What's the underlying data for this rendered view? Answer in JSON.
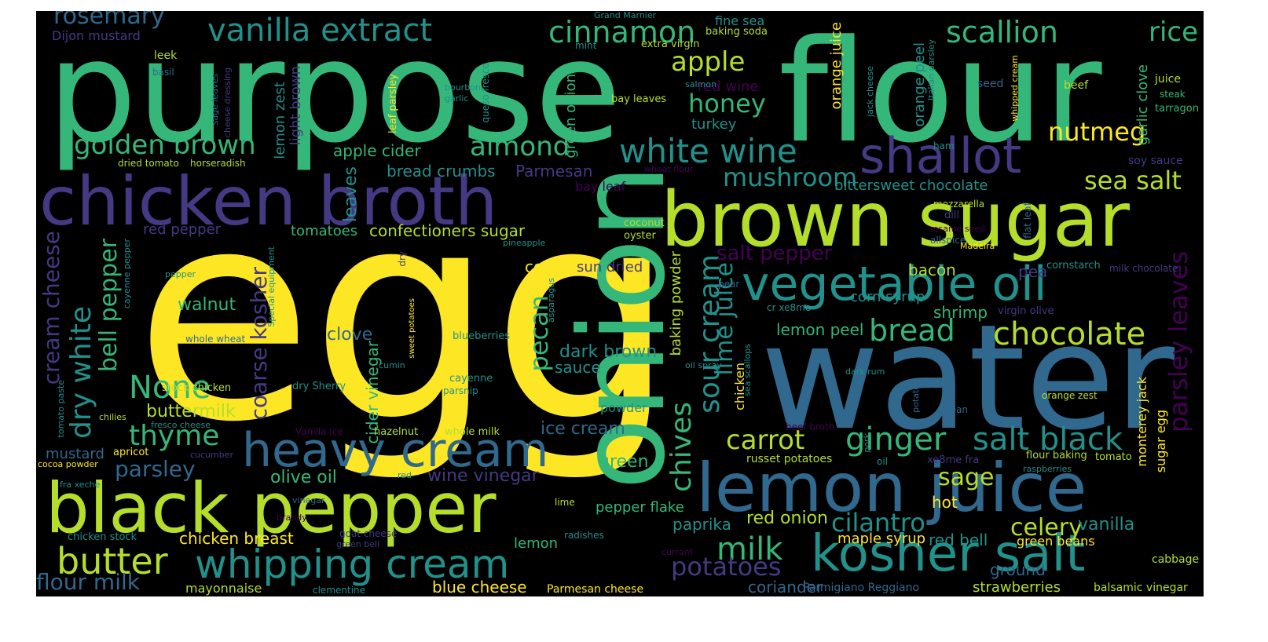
{
  "palette": {
    "yellow": "#fde725",
    "lime": "#b5de2b",
    "green": "#35b779",
    "teal": "#21918c",
    "blue": "#31688e",
    "indigo": "#443983",
    "purple": "#440154",
    "bg": "#000000"
  },
  "words": {
    "egg": "egg",
    "water": "water",
    "purpose": "purpose",
    "flour": "flour",
    "onion": "onion",
    "chicken_broth": "chicken broth",
    "brown_sugar": "brown sugar",
    "black_pepper": "black pepper",
    "lemon_juice": "lemon juice",
    "heavy_cream": "heavy cream",
    "vegetable_oil": "vegetable oil",
    "kosher_salt": "kosher salt",
    "whipping_cream": "whipping cream",
    "shallot": "shallot",
    "white_wine": "white wine",
    "vanilla_extract": "vanilla extract",
    "cinnamon": "cinnamon",
    "scallion": "scallion",
    "rice": "rice",
    "rosemary": "rosemary",
    "butter": "butter",
    "none": "None",
    "chocolate": "chocolate",
    "bread": "bread",
    "ginger": "ginger",
    "salt_black": "salt black",
    "thyme": "thyme",
    "milk": "milk",
    "golden_brown": "golden brown",
    "almond": "almond",
    "honey": "honey",
    "apple": "apple",
    "mushroom": "mushroom",
    "nutmeg": "nutmeg",
    "sea_salt": "sea salt",
    "carrot": "carrot",
    "cilantro": "cilantro",
    "celery": "celery",
    "sage": "sage",
    "potatoes": "potatoes",
    "parsley": "parsley",
    "flour_milk": "flour milk",
    "dry_white": "dry white",
    "bell_pepper": "bell pepper",
    "cream_cheese": "cream cheese",
    "coarse_kosher": "coarse kosher",
    "sour_cream": "sour cream",
    "chives": "chives",
    "pecan": "pecan",
    "lime_juice": "lime juice",
    "parsley_leaves": "parsley leaves",
    "salt_pepper": "salt pepper",
    "confectioners_sugar": "confectioners sugar",
    "bread_crumbs": "bread crumbs",
    "apple_cider": "apple cider",
    "parmesan": "Parmesan",
    "bittersweet_chocolate": "bittersweet chocolate",
    "olive_oil": "olive oil",
    "wine_vinegar": "wine vinegar",
    "ice_cream": "ice cream",
    "chicken_breast": "chicken breast",
    "blue_cheese": "blue cheese",
    "parmesan_cheese": "Parmesan cheese",
    "coriander": "coriander",
    "parmigiano_reggiano": "Parmigiano Reggiano",
    "strawberries": "strawberries",
    "balsamic_vinegar": "balsamic vinegar",
    "mayonnaise": "mayonnaise",
    "clementine": "clementine",
    "paprika": "paprika",
    "red_onion": "red onion",
    "red_bell": "red bell",
    "vanilla": "vanilla",
    "maple_syrup": "maple syrup",
    "green_beans": "green beans",
    "cabbage": "cabbage",
    "ground": "ground",
    "hot": "hot",
    "lemon_peel": "lemon peel",
    "shrimp": "shrimp",
    "corn_syrup": "corn syrup",
    "bacon": "bacon",
    "pea": "pea",
    "walnut": "walnut",
    "clove": "clove",
    "dark_brown": "dark brown",
    "sauce": "sauce",
    "corn": "corn",
    "sun_dried": "sun dried",
    "baking_powder": "baking powder",
    "buttermilk": "buttermilk",
    "mustard": "mustard",
    "red_pepper": "red pepper",
    "tomatoes": "tomatoes",
    "leaves": "leaves",
    "lemon_zest": "lemon zest",
    "light_brown": "light brown",
    "cider_vinegar": "cider vinegar",
    "green": "green",
    "powder": "powder",
    "pepper_flake": "pepper flake",
    "lemon": "lemon",
    "garlic_clove": "garlic clove",
    "orange_peel": "orange peel",
    "orange_juice": "orange juice",
    "green_onion": "green onion",
    "turkey": "turkey",
    "red_wine": "red wine",
    "bay_leaf": "bay leaf",
    "dijon_mustard": "Dijon mustard",
    "leek": "leek",
    "basil": "basil",
    "dried_tomato": "dried tomato",
    "horseradish": "horseradish",
    "grand_marnier": "Grand Marnier",
    "fine_sea": "fine sea",
    "baking_soda": "baking soda",
    "extra_virgin": "extra virgin",
    "mint": "mint",
    "salmon": "salmon",
    "bay_leaves": "bay leaves",
    "juice": "juice",
    "steak": "steak",
    "tarragon": "tarragon",
    "beef": "beef",
    "seed": "seed",
    "ham": "ham",
    "soy_sauce": "soy sauce",
    "whipped_cream": "whipped cream",
    "jack_cheese": "jack cheese",
    "italian_parsley": "Italian parsley",
    "queso_fresco": "queso fresco",
    "bourbon": "bourbon",
    "garlic": "garlic",
    "leaf_parsley": "leaf parsley",
    "sage_leaves": "sage leaves",
    "cheese_dressing": "cheese dressing",
    "wheat_flour": "wheat flour",
    "mozzarella": "mozzarella",
    "dill": "dill",
    "sesame_seed": "sesame seed",
    "allspice": "allspice",
    "madeira": "Madeira",
    "flat_leaf": "flat leaf",
    "milk_chocolate": "milk chocolate",
    "cornstarch": "cornstarch",
    "coconut": "coconut",
    "oyster": "oyster",
    "pineapple": "pineapple",
    "pepper": "pepper",
    "cayenne_pepper": "cayenne pepper",
    "special_equipment": "Special equipment",
    "dry": "dry",
    "pear": "pear",
    "cr_xe8me": "cr xe8me",
    "virgin_olive": "virgin olive",
    "whole_wheat": "whole wheat",
    "cumin": "cumin",
    "asparagus": "asparagus",
    "sweet_potatoes": "sweet potatoes",
    "blueberries": "blueberries",
    "oil_spray": "oil spray",
    "dry_sherry": "dry Sherry",
    "cayenne": "cayenne",
    "parsnip": "parsnip",
    "stock_chicken": "stock chicken",
    "tomato_paste": "tomato paste",
    "chilies": "chilies",
    "fresco_cheese": "fresco cheese",
    "vanilla_ice": "Vanilla ice",
    "hazelnut": "hazelnut",
    "whole_milk": "whole milk",
    "dark_rum": "dark rum",
    "sea_scallops": "sea scallops",
    "sugar_egg": "sugar egg",
    "monterey_jack": "monterey jack",
    "orange_zest": "orange zest",
    "potato": "potato",
    "bean": "bean",
    "beef_broth": "beef broth",
    "pork": "pork",
    "russet_potatoes": "russet potatoes",
    "oil": "oil",
    "xe8me_fra": "xe8me fra",
    "flour_baking": "flour baking",
    "raspberries": "raspberries",
    "tomato": "tomato",
    "apricot": "apricot",
    "cucumber": "cucumber",
    "cocoa_powder": "cocoa powder",
    "fra_xeche": "fra xeche",
    "red": "red",
    "vinegar": "vinegar",
    "lime": "lime",
    "brandy": "brandy",
    "goat_cheese": "goat cheese",
    "green_bell": "green bell",
    "radishes": "radishes",
    "chicken_stock": "chicken stock",
    "currant": "currant",
    "chicken": "chicken"
  }
}
